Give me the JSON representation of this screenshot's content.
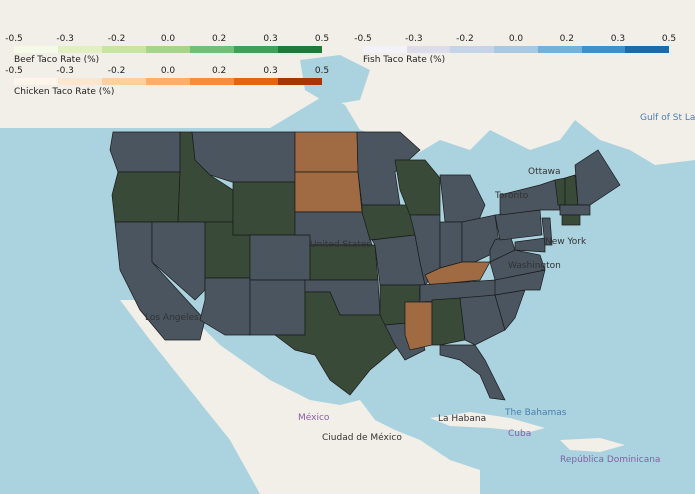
{
  "legends": {
    "beef": {
      "title": "Beef Taco Rate (%)",
      "ticks": [
        "-0.5",
        "-0.3",
        "-0.2",
        "0.0",
        "0.2",
        "0.3",
        "0.5"
      ],
      "colors": [
        "#f4f9e8",
        "#e1f0c0",
        "#c7e5a0",
        "#a4d58a",
        "#74bf78",
        "#40a05a",
        "#1f7a3a"
      ]
    },
    "fish": {
      "title": "Fish Taco Rate (%)",
      "ticks": [
        "-0.5",
        "-0.3",
        "-0.2",
        "0.0",
        "0.2",
        "0.3",
        "0.5"
      ],
      "colors": [
        "#f2f2f8",
        "#dcdceb",
        "#c5d4e8",
        "#a9c8e2",
        "#74b0d8",
        "#3f90c8",
        "#1d6aa8"
      ]
    },
    "chicken": {
      "title": "Chicken Taco Rate (%)",
      "ticks": [
        "-0.5",
        "-0.3",
        "-0.2",
        "0.0",
        "0.2",
        "0.3",
        "0.5"
      ],
      "colors": [
        "#fff5eb",
        "#fde6ce",
        "#fdcfa1",
        "#fdae6b",
        "#f98c3c",
        "#e6640e",
        "#a63603"
      ]
    }
  },
  "places": {
    "ottawa": "Ottawa",
    "toronto": "Toronto",
    "new_york": "New York",
    "washington": "Washington",
    "united_states": "United States",
    "los_angeles": "Los Angeles",
    "mexico": "México",
    "ciudad_de_mexico": "Ciudad de México",
    "la_habana": "La Habana",
    "cuba": "Cuba",
    "the_bahamas": "The Bahamas",
    "republica_dominicana": "República Dominicana",
    "gulf_of_st_lawrence": "Gulf of St Lawrence"
  },
  "state_colors": {
    "beef": "#3a4a38",
    "fish": "#4a5560",
    "chicken": "#a06a42"
  },
  "colors": {
    "water": "#aad3df",
    "land": "#f2efe9",
    "border": "#1a1a1a"
  }
}
